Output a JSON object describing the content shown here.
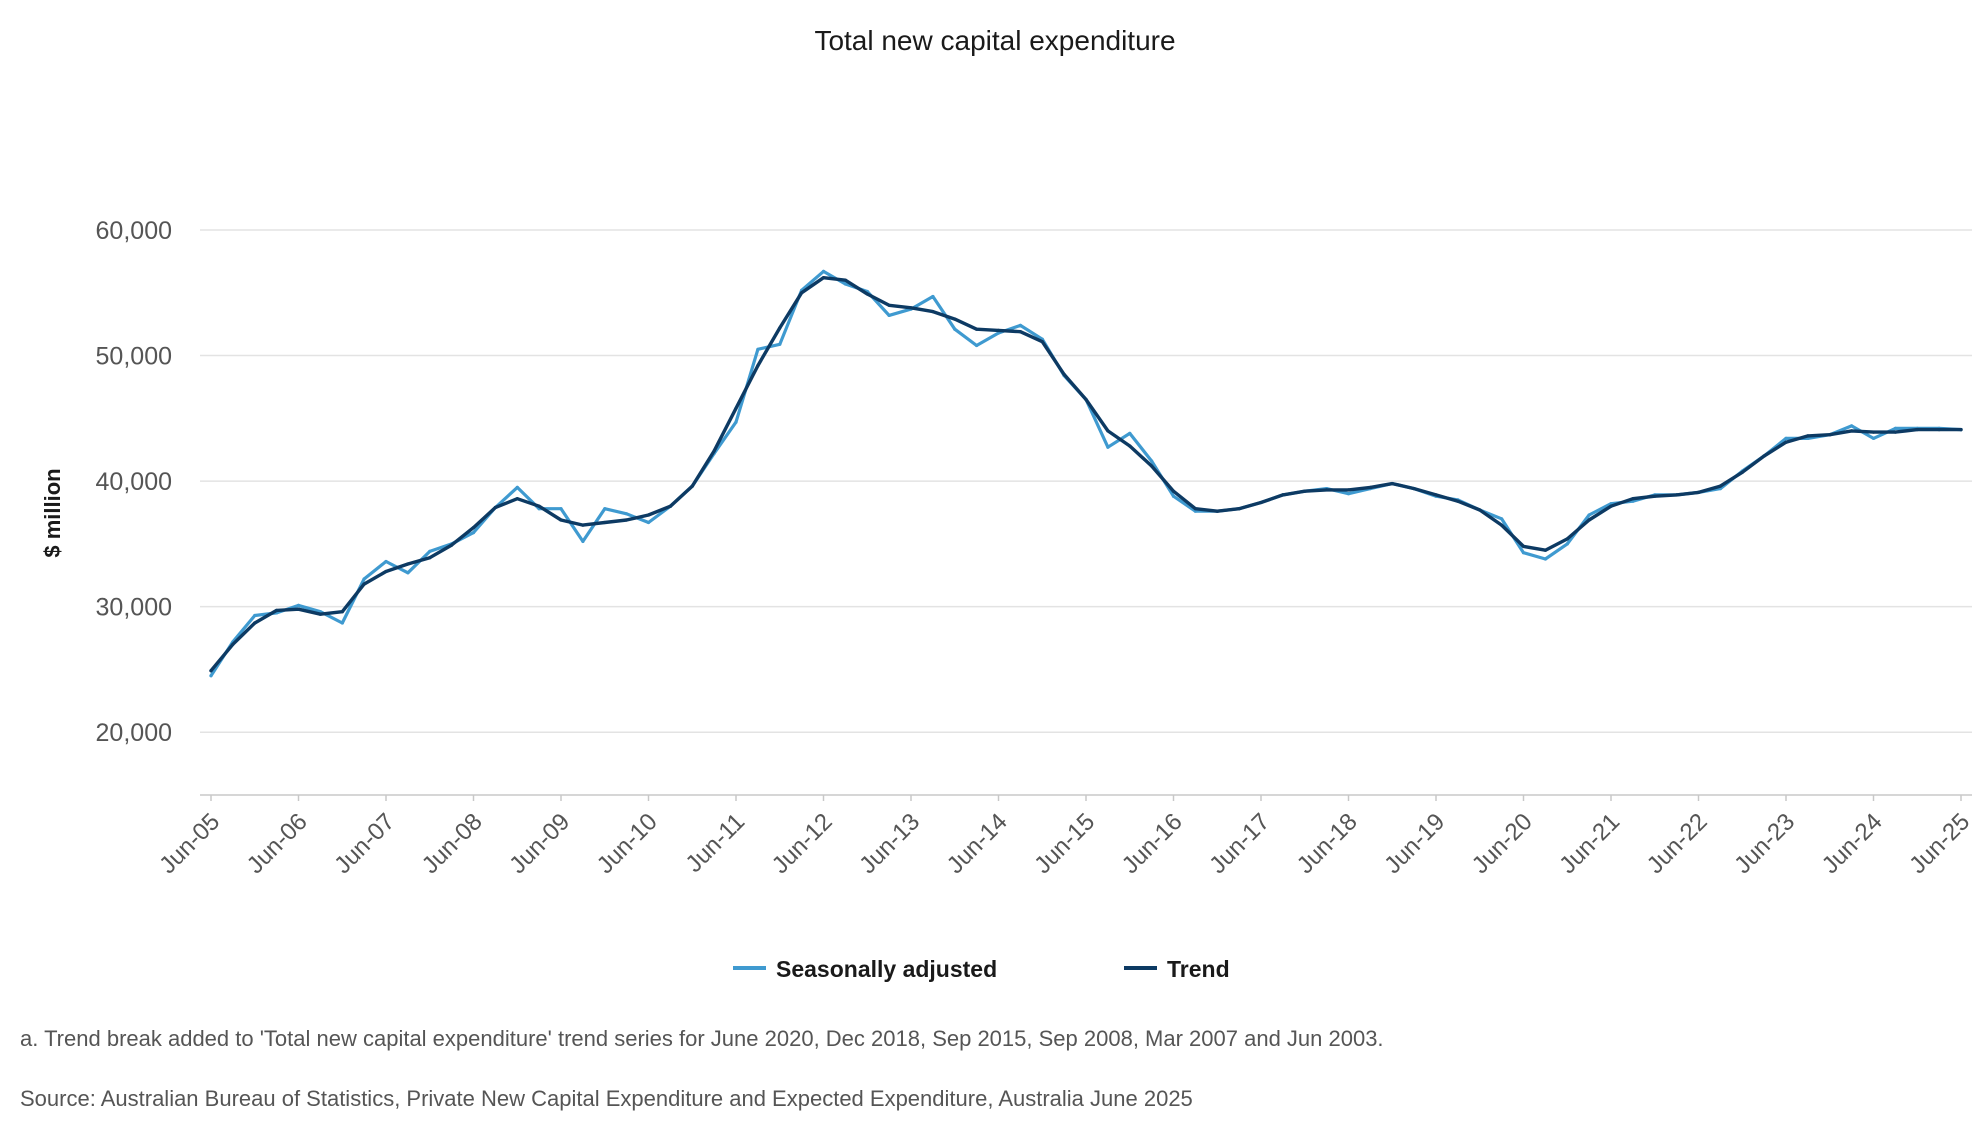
{
  "chart_data": {
    "type": "line",
    "title": "Total new capital expenditure",
    "ylabel": "$ million",
    "xlabel": "",
    "ylim": [
      15000,
      60000
    ],
    "yticks": [
      20000,
      30000,
      40000,
      50000,
      60000
    ],
    "ytick_labels": [
      "20,000",
      "30,000",
      "40,000",
      "50,000",
      "60,000"
    ],
    "x_start_label": "Jun-05",
    "x_step": "quarter",
    "x_tick_every": 4,
    "tick_labels": [
      "Jun-05",
      "Jun-06",
      "Jun-07",
      "Jun-08",
      "Jun-09",
      "Jun-10",
      "Jun-11",
      "Jun-12",
      "Jun-13",
      "Jun-14",
      "Jun-15",
      "Jun-16",
      "Jun-17",
      "Jun-18",
      "Jun-19",
      "Jun-20",
      "Jun-21",
      "Jun-22",
      "Jun-23",
      "Jun-24",
      "Jun-25"
    ],
    "grid": true,
    "legend_position": "bottom-center",
    "series": [
      {
        "name": "Seasonally adjusted",
        "color": "#3f9ad0",
        "values": [
          24500,
          27200,
          29300,
          29500,
          30100,
          29600,
          28700,
          32200,
          33600,
          32700,
          34400,
          35000,
          35900,
          37900,
          39500,
          37800,
          37800,
          35200,
          37800,
          37400,
          36700,
          38000,
          39600,
          42200,
          44700,
          50500,
          50900,
          55200,
          56700,
          55700,
          55100,
          53200,
          53700,
          54700,
          52100,
          50800,
          51800,
          52400,
          51300,
          48400,
          46500,
          42700,
          43800,
          41600,
          38800,
          37600,
          37600,
          37800,
          38300,
          38900,
          39200,
          39400,
          39000,
          39400,
          39800,
          39400,
          38800,
          38500,
          37700,
          37000,
          34300,
          33800,
          35000,
          37300,
          38200,
          38400,
          38900,
          38900,
          39100,
          39400,
          40800,
          42000,
          43400,
          43400,
          43700,
          44400,
          43400,
          44200,
          44200,
          44200,
          44100
        ]
      },
      {
        "name": "Trend",
        "color": "#0d3a63",
        "values": [
          24900,
          27000,
          28700,
          29700,
          29800,
          29400,
          29600,
          31800,
          32800,
          33400,
          33900,
          34900,
          36300,
          37900,
          38600,
          38000,
          36900,
          36500,
          36700,
          36900,
          37300,
          38000,
          39600,
          42400,
          45800,
          49200,
          52200,
          55000,
          56200,
          56000,
          54900,
          54000,
          53800,
          53500,
          52900,
          52100,
          52000,
          51900,
          51100,
          48500,
          46500,
          44000,
          42800,
          41200,
          39200,
          37800,
          37600,
          37800,
          38300,
          38900,
          39200,
          39300,
          39300,
          39500,
          39800,
          39400,
          38900,
          38400,
          37700,
          36500,
          34800,
          34500,
          35400,
          36900,
          38000,
          38600,
          38800,
          38900,
          39100,
          39600,
          40700,
          42000,
          43100,
          43600,
          43700,
          44000,
          43900,
          43900,
          44100,
          44100,
          44100
        ]
      }
    ]
  },
  "footnotes": {
    "note_a": "a. Trend break added to 'Total new capital expenditure' trend series for June 2020, Dec 2018, Sep 2015, Sep 2008, Mar 2007 and Jun 2003.",
    "source": "Source: Australian Bureau of Statistics, Private New Capital Expenditure and Expected Expenditure, Australia June 2025"
  }
}
